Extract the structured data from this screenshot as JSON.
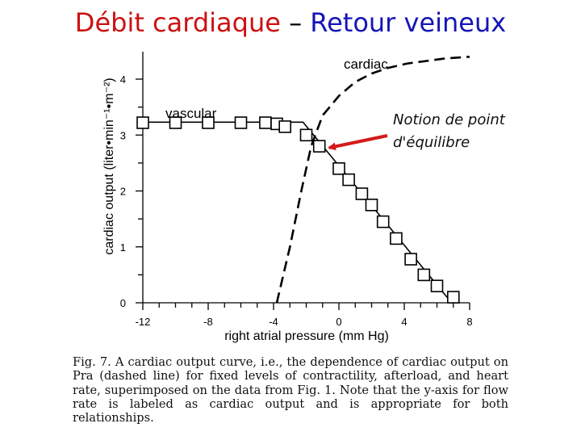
{
  "slide": {
    "title_part1": "Débit cardiaque",
    "title_dash": " – ",
    "title_part2": "Retour veineux",
    "colors": {
      "title_part1": "#cc1111",
      "title_part2": "#1515b8",
      "annotation_arrow": "#d41a1a"
    }
  },
  "chart_data": {
    "type": "scatter",
    "xlabel": "right atrial pressure (mm Hg)",
    "ylabel": "cardiac output (liter•min⁻¹•m⁻²)",
    "xlim": [
      -13,
      8.3
    ],
    "ylim": [
      -0.05,
      4.5
    ],
    "x_ticks": [
      -12,
      -8,
      -4,
      0,
      4,
      8
    ],
    "y_ticks": [
      0,
      1,
      2,
      3,
      4
    ],
    "x_minor_step": 1,
    "y_minor_step": 0.5,
    "grid": false,
    "series": [
      {
        "name": "vascular",
        "style": "solid",
        "line": [
          [
            -12,
            3.23
          ],
          [
            -2.2,
            3.23
          ],
          [
            6.9,
            0.0
          ]
        ],
        "markers": [
          [
            -12,
            3.22
          ],
          [
            -10,
            3.22
          ],
          [
            -8,
            3.22
          ],
          [
            -6,
            3.22
          ],
          [
            -4.5,
            3.22
          ],
          [
            -3.8,
            3.2
          ],
          [
            -3.3,
            3.15
          ],
          [
            -2.0,
            3.0
          ],
          [
            -1.2,
            2.8
          ],
          [
            0,
            2.4
          ],
          [
            0.6,
            2.2
          ],
          [
            1.4,
            1.95
          ],
          [
            2.0,
            1.75
          ],
          [
            2.7,
            1.45
          ],
          [
            3.5,
            1.15
          ],
          [
            4.4,
            0.78
          ],
          [
            5.2,
            0.5
          ],
          [
            6.0,
            0.3
          ],
          [
            7.0,
            0.1
          ]
        ]
      },
      {
        "name": "cardiac",
        "style": "dashed",
        "line": [
          [
            -3.8,
            0.0
          ],
          [
            -3.0,
            1.0
          ],
          [
            -2.3,
            2.0
          ],
          [
            -1.7,
            2.8
          ],
          [
            -1.0,
            3.35
          ],
          [
            0,
            3.7
          ],
          [
            1,
            3.95
          ],
          [
            2,
            4.1
          ],
          [
            3,
            4.2
          ],
          [
            4.2,
            4.28
          ],
          [
            5.5,
            4.33
          ],
          [
            6.5,
            4.37
          ],
          [
            8,
            4.4
          ]
        ]
      }
    ],
    "annotation": {
      "text_line1": "Notion de point",
      "text_line2": "d'équilibre",
      "points_to": [
        -1.2,
        2.8
      ]
    }
  },
  "caption": "Fig. 7.  A cardiac output curve, i.e., the dependence of cardiac output on Pra (dashed line) for fixed levels of contractility, afterload, and heart rate, superimposed on the data from Fig. 1. Note that the y-axis for flow rate is labeled as cardiac output and is appropriate for both relationships."
}
